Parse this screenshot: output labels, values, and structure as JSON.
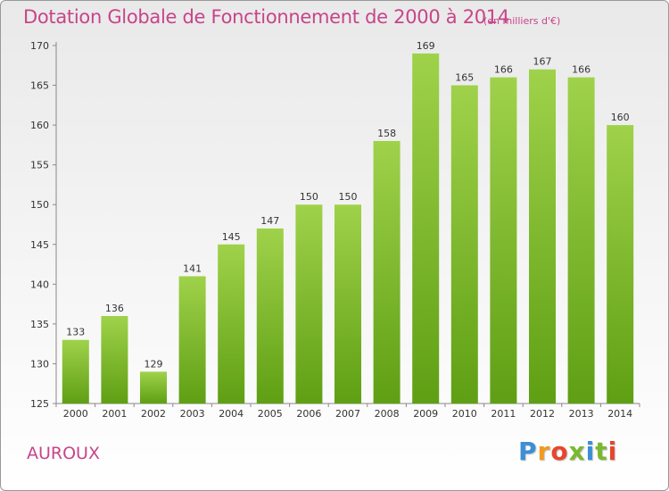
{
  "header": {
    "title": "Dotation Globale de Fonctionnement de 2000 à 2014",
    "unit_note": "(en milliers d'€)"
  },
  "footer": {
    "commune": "AUROUX",
    "brand_letters": [
      "P",
      "r",
      "o",
      "x",
      "i",
      "t",
      "i"
    ],
    "brand_colors": [
      "#3a8fd6",
      "#f29a1f",
      "#e8452c",
      "#7ab92f",
      "#3a8fd6",
      "#7ab92f",
      "#e8452c"
    ]
  },
  "colors": {
    "accent": "#c8448a",
    "bar_top": "#9fd24a",
    "bar_bottom": "#5f9f14"
  },
  "chart_data": {
    "type": "bar",
    "categories": [
      "2000",
      "2001",
      "2002",
      "2003",
      "2004",
      "2005",
      "2006",
      "2007",
      "2008",
      "2009",
      "2010",
      "2011",
      "2012",
      "2013",
      "2014"
    ],
    "values": [
      133,
      136,
      129,
      141,
      145,
      147,
      150,
      150,
      158,
      169,
      165,
      166,
      167,
      166,
      160
    ],
    "ylim": [
      125,
      170
    ],
    "yticks": [
      125,
      130,
      135,
      140,
      145,
      150,
      155,
      160,
      165,
      170
    ],
    "grid": false,
    "data_labels": true
  }
}
